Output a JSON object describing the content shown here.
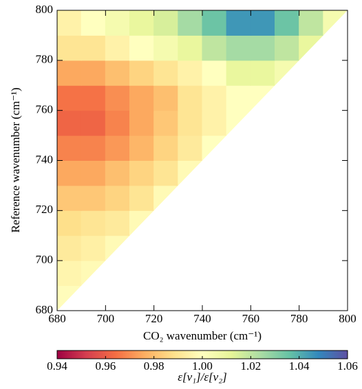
{
  "chart_data": {
    "type": "heatmap",
    "xlabel": "CO₂ wavenumber (cm⁻¹)",
    "ylabel": "Reference wavenumber (cm⁻¹)",
    "colorbar_label": "ε[ν₁]/ε[ν₂]",
    "x": [
      685,
      695,
      705,
      715,
      725,
      735,
      745,
      755,
      765,
      775,
      785,
      795
    ],
    "y": [
      685,
      695,
      705,
      715,
      725,
      735,
      745,
      755,
      765,
      775,
      785,
      795
    ],
    "values": [
      [
        0.999,
        null,
        null,
        null,
        null,
        null,
        null,
        null,
        null,
        null,
        null,
        null
      ],
      [
        0.996,
        0.998,
        null,
        null,
        null,
        null,
        null,
        null,
        null,
        null,
        null,
        null
      ],
      [
        0.992,
        0.994,
        0.998,
        null,
        null,
        null,
        null,
        null,
        null,
        null,
        null,
        null
      ],
      [
        0.988,
        0.99,
        0.992,
        0.998,
        null,
        null,
        null,
        null,
        null,
        null,
        null,
        null
      ],
      [
        0.982,
        0.982,
        0.985,
        0.99,
        0.998,
        null,
        null,
        null,
        null,
        null,
        null,
        null
      ],
      [
        0.975,
        0.975,
        0.98,
        0.985,
        0.99,
        0.998,
        null,
        null,
        null,
        null,
        null,
        null
      ],
      [
        0.968,
        0.968,
        0.972,
        0.978,
        0.985,
        0.992,
        1.0,
        null,
        null,
        null,
        null,
        null
      ],
      [
        0.962,
        0.962,
        0.968,
        0.975,
        0.982,
        0.99,
        0.995,
        1.0,
        null,
        null,
        null,
        null
      ],
      [
        0.965,
        0.965,
        0.97,
        0.975,
        0.98,
        0.99,
        0.995,
        1.0,
        1.0,
        null,
        null,
        null
      ],
      [
        0.975,
        0.975,
        0.98,
        0.985,
        0.99,
        0.995,
        1.0,
        1.01,
        1.01,
        1.005,
        null,
        null
      ],
      [
        0.99,
        0.99,
        0.995,
        1.0,
        1.005,
        1.01,
        1.02,
        1.025,
        1.025,
        1.02,
        1.01,
        null
      ],
      [
        0.995,
        1.0,
        1.005,
        1.01,
        1.015,
        1.025,
        1.035,
        1.045,
        1.045,
        1.035,
        1.02,
        1.005
      ]
    ],
    "xlim": [
      680,
      800
    ],
    "ylim": [
      680,
      800
    ],
    "xticks": [
      680,
      700,
      720,
      740,
      760,
      780,
      800
    ],
    "yticks": [
      680,
      700,
      720,
      740,
      760,
      780,
      800
    ],
    "zlim": [
      0.94,
      1.06
    ],
    "cticks": [
      {
        "value": 0.94,
        "label": "0.94"
      },
      {
        "value": 0.96,
        "label": "0.96"
      },
      {
        "value": 0.98,
        "label": "0.98"
      },
      {
        "value": 1.0,
        "label": "1.00"
      },
      {
        "value": 1.02,
        "label": "1.02"
      },
      {
        "value": 1.04,
        "label": "1.04"
      },
      {
        "value": 1.06,
        "label": "1.06"
      }
    ],
    "colormap": [
      "#9e0142",
      "#d53e4f",
      "#f46d43",
      "#fdae61",
      "#fee08b",
      "#ffffbf",
      "#e6f598",
      "#abdda4",
      "#66c2a5",
      "#3288bd",
      "#5e4fa2"
    ]
  }
}
